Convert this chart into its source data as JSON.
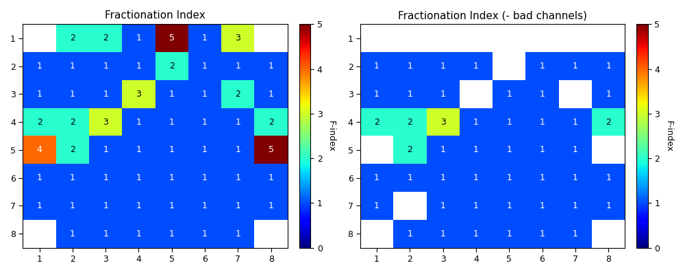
{
  "title1": "Fractionation Index",
  "title2": "Fractionation Index (- bad channels)",
  "colorbar_label": "F-index",
  "vmin": 0,
  "vmax": 5,
  "xtick_labels": [
    "1",
    "2",
    "3",
    "4",
    "5",
    "6",
    "7",
    "8"
  ],
  "ytick_labels": [
    "1",
    "2",
    "3",
    "4",
    "5",
    "6",
    "7",
    "8"
  ],
  "grid1": [
    [
      null,
      2,
      2,
      1,
      5,
      1,
      3,
      null
    ],
    [
      1,
      1,
      1,
      1,
      2,
      1,
      1,
      1
    ],
    [
      1,
      1,
      1,
      3,
      1,
      1,
      2,
      1
    ],
    [
      2,
      2,
      3,
      1,
      1,
      1,
      1,
      2
    ],
    [
      4,
      2,
      1,
      1,
      1,
      1,
      1,
      5
    ],
    [
      1,
      1,
      1,
      1,
      1,
      1,
      1,
      1
    ],
    [
      1,
      1,
      1,
      1,
      1,
      1,
      1,
      1
    ],
    [
      null,
      1,
      1,
      1,
      1,
      1,
      1,
      null
    ]
  ],
  "grid2": [
    [
      null,
      null,
      null,
      null,
      null,
      null,
      null,
      null
    ],
    [
      1,
      1,
      1,
      1,
      null,
      1,
      1,
      1
    ],
    [
      1,
      1,
      1,
      null,
      1,
      1,
      null,
      1
    ],
    [
      2,
      2,
      3,
      1,
      1,
      1,
      1,
      2
    ],
    [
      null,
      2,
      1,
      1,
      1,
      1,
      1,
      null
    ],
    [
      1,
      1,
      1,
      1,
      1,
      1,
      1,
      1
    ],
    [
      1,
      null,
      1,
      1,
      1,
      1,
      1,
      1
    ],
    [
      null,
      1,
      1,
      1,
      1,
      1,
      1,
      null
    ]
  ],
  "cmap": "jet",
  "nan_color": "white",
  "figsize": [
    10.0,
    4.0
  ],
  "dpi": 100,
  "title_fontsize": 11,
  "tick_fontsize": 9,
  "annot_fontsize": 9,
  "cbar_label_fontsize": 9,
  "cbar_tick_fontsize": 9
}
